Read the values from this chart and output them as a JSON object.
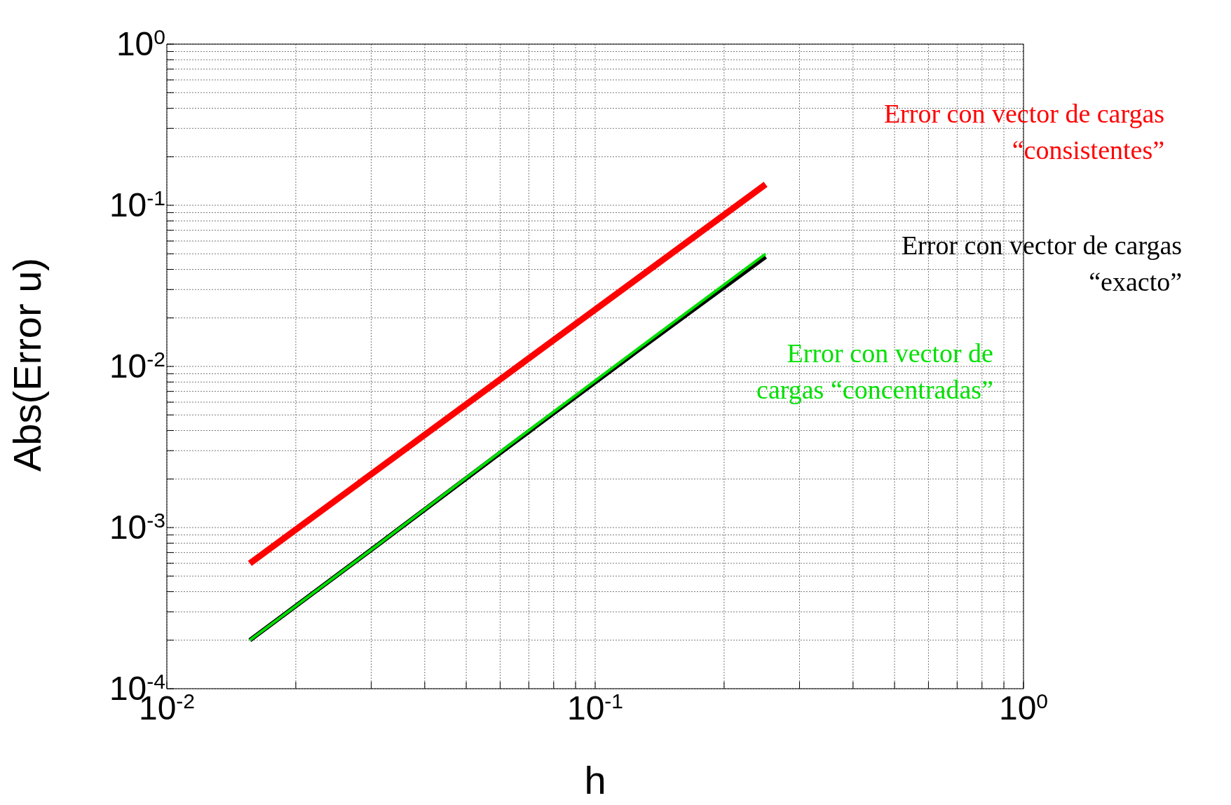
{
  "chart_data": {
    "type": "line",
    "xlabel": "h",
    "ylabel": "Abs(Error u)",
    "log": "xy",
    "grid": true,
    "legend": false,
    "marker": "none",
    "line_style": "solid",
    "x": [
      0.015625,
      0.03125,
      0.0625,
      0.125,
      0.25
    ],
    "xlim": [
      0.01,
      1
    ],
    "ylim": [
      0.0001,
      1
    ],
    "xticks": [
      {
        "value": 0.01,
        "label": "10$^{-2}$"
      },
      {
        "value": 0.02,
        "label": null
      },
      {
        "value": 0.03,
        "label": null
      },
      {
        "value": 0.04,
        "label": null
      },
      {
        "value": 0.05,
        "label": null
      },
      {
        "value": 0.06,
        "label": null
      },
      {
        "value": 0.07,
        "label": null
      },
      {
        "value": 0.08,
        "label": null
      },
      {
        "value": 0.09,
        "label": null
      },
      {
        "value": 0.1,
        "label": "10$^{-1}$"
      },
      {
        "value": 0.2,
        "label": null
      },
      {
        "value": 0.3,
        "label": null
      },
      {
        "value": 0.4,
        "label": null
      },
      {
        "value": 0.5,
        "label": null
      },
      {
        "value": 0.6,
        "label": null
      },
      {
        "value": 0.7,
        "label": null
      },
      {
        "value": 0.8,
        "label": null
      },
      {
        "value": 0.9,
        "label": null
      },
      {
        "value": 1,
        "label": "10$^{0}$"
      }
    ],
    "yticks": [
      {
        "value": 0.0001,
        "label": "10$^{-4}$"
      },
      {
        "value": 0.0002,
        "label": null
      },
      {
        "value": 0.0003,
        "label": null
      },
      {
        "value": 0.0004,
        "label": null
      },
      {
        "value": 0.0005,
        "label": null
      },
      {
        "value": 0.0006,
        "label": null
      },
      {
        "value": 0.0007,
        "label": null
      },
      {
        "value": 0.0008,
        "label": null
      },
      {
        "value": 0.0009,
        "label": null
      },
      {
        "value": 0.001,
        "label": "10$^{-3}$"
      },
      {
        "value": 0.002,
        "label": null
      },
      {
        "value": 0.003,
        "label": null
      },
      {
        "value": 0.004,
        "label": null
      },
      {
        "value": 0.005,
        "label": null
      },
      {
        "value": 0.006,
        "label": null
      },
      {
        "value": 0.007,
        "label": null
      },
      {
        "value": 0.008,
        "label": null
      },
      {
        "value": 0.009,
        "label": null
      },
      {
        "value": 0.01,
        "label": "10$^{-2}$"
      },
      {
        "value": 0.02,
        "label": null
      },
      {
        "value": 0.03,
        "label": null
      },
      {
        "value": 0.04,
        "label": null
      },
      {
        "value": 0.05,
        "label": null
      },
      {
        "value": 0.06,
        "label": null
      },
      {
        "value": 0.07,
        "label": null
      },
      {
        "value": 0.08,
        "label": null
      },
      {
        "value": 0.09,
        "label": null
      },
      {
        "value": 0.1,
        "label": "10$^{-1}$"
      },
      {
        "value": 0.2,
        "label": null
      },
      {
        "value": 0.3,
        "label": null
      },
      {
        "value": 0.4,
        "label": null
      },
      {
        "value": 0.5,
        "label": null
      },
      {
        "value": 0.6,
        "label": null
      },
      {
        "value": 0.7,
        "label": null
      },
      {
        "value": 0.8,
        "label": null
      },
      {
        "value": 0.9,
        "label": null
      },
      {
        "value": 1,
        "label": "10$^{0}$"
      }
    ],
    "series": [
      {
        "name": "Error con vector de cargas\n“consistentes”",
        "color": "#ff0000",
        "values": [
          0.0006,
          0.00232,
          0.009,
          0.0348,
          0.135
        ]
      },
      {
        "name": "Error con vector de cargas\n“exacto”",
        "color": "#000000",
        "values": [
          0.0002,
          0.00079,
          0.00315,
          0.0124,
          0.048
        ]
      },
      {
        "name": "Error con vector de\ncargas “concentradas”",
        "color": "#00e000",
        "values": [
          0.0002,
          0.00079,
          0.0032,
          0.0127,
          0.05
        ]
      }
    ]
  }
}
